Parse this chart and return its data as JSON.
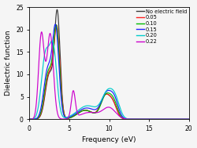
{
  "xlabel": "Frequency (eV)",
  "ylabel": "Dielectric function",
  "xlim": [
    0,
    20
  ],
  "ylim": [
    0,
    25
  ],
  "xticks": [
    0,
    5,
    10,
    15,
    20
  ],
  "yticks": [
    0,
    5,
    10,
    15,
    20,
    25
  ],
  "legend_labels": [
    "No electric field",
    "0.05",
    "0.10",
    "0.15",
    "0.20",
    "0.22"
  ],
  "legend_colors": [
    "#3a3a3a",
    "#ff2020",
    "#00bb00",
    "#2020ff",
    "#00cccc",
    "#cc00cc"
  ],
  "background_color": "#f5f5f5",
  "figsize": [
    2.5,
    1.89
  ],
  "dpi": 100
}
